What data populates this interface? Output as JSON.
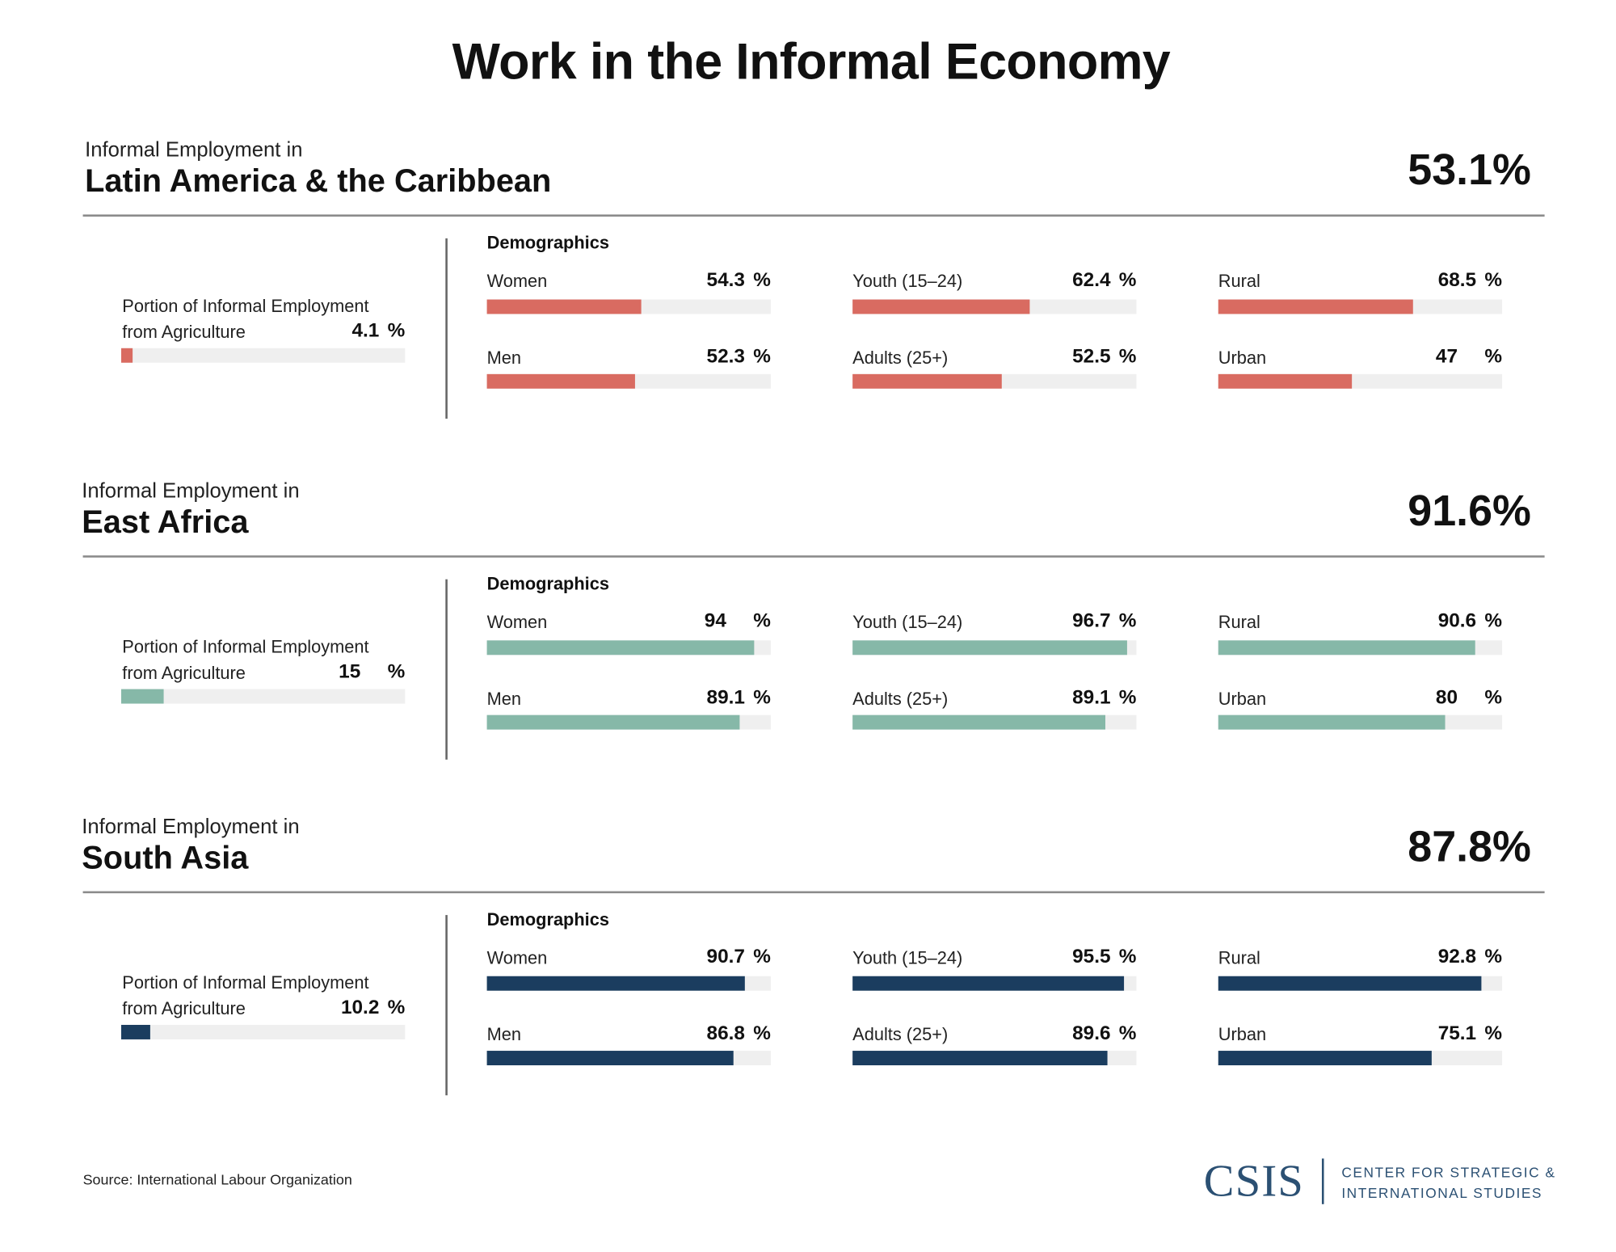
{
  "title": "Work in the Informal Economy",
  "source": "Source: International Labour Organization",
  "logo": {
    "mark": "CSIS",
    "line1": "CENTER FOR STRATEGIC &",
    "line2": "INTERNATIONAL STUDIES"
  },
  "chart_data": {
    "type": "bar",
    "value_range": [
      0,
      100
    ],
    "unit": "%",
    "regions": [
      {
        "subtitle": "Informal Employment in",
        "name": "Latin America & the Caribbean",
        "total": "53.1%",
        "color": "#d96b61",
        "agriculture": {
          "label1": "Portion of Informal Employment",
          "label2": "from Agriculture",
          "value": 4.1
        },
        "demographics_label": "Demographics",
        "columns": [
          [
            {
              "label": "Women",
              "value": 54.3
            },
            {
              "label": "Men",
              "value": 52.3
            }
          ],
          [
            {
              "label": "Youth (15–24)",
              "value": 62.4
            },
            {
              "label": "Adults (25+)",
              "value": 52.5
            }
          ],
          [
            {
              "label": "Rural",
              "value": 68.5
            },
            {
              "label": "Urban",
              "value": 47
            }
          ]
        ]
      },
      {
        "subtitle": "Informal Employment in",
        "name": "East Africa",
        "total": "91.6%",
        "color": "#86b8a8",
        "agriculture": {
          "label1": "Portion of Informal Employment",
          "label2": "from Agriculture",
          "value": 15
        },
        "demographics_label": "Demographics",
        "columns": [
          [
            {
              "label": "Women",
              "value": 94
            },
            {
              "label": "Men",
              "value": 89.1
            }
          ],
          [
            {
              "label": "Youth (15–24)",
              "value": 96.7
            },
            {
              "label": "Adults (25+)",
              "value": 89.1
            }
          ],
          [
            {
              "label": "Rural",
              "value": 90.6
            },
            {
              "label": "Urban",
              "value": 80
            }
          ]
        ]
      },
      {
        "subtitle": "Informal Employment in",
        "name": "South Asia",
        "total": "87.8%",
        "color": "#1b3d5f",
        "agriculture": {
          "label1": "Portion of Informal Employment",
          "label2": "from Agriculture",
          "value": 10.2
        },
        "demographics_label": "Demographics",
        "columns": [
          [
            {
              "label": "Women",
              "value": 90.7
            },
            {
              "label": "Men",
              "value": 86.8
            }
          ],
          [
            {
              "label": "Youth (15–24)",
              "value": 95.5
            },
            {
              "label": "Adults (25+)",
              "value": 89.6
            }
          ],
          [
            {
              "label": "Rural",
              "value": 92.8
            },
            {
              "label": "Urban",
              "value": 75.1
            }
          ]
        ]
      }
    ]
  }
}
